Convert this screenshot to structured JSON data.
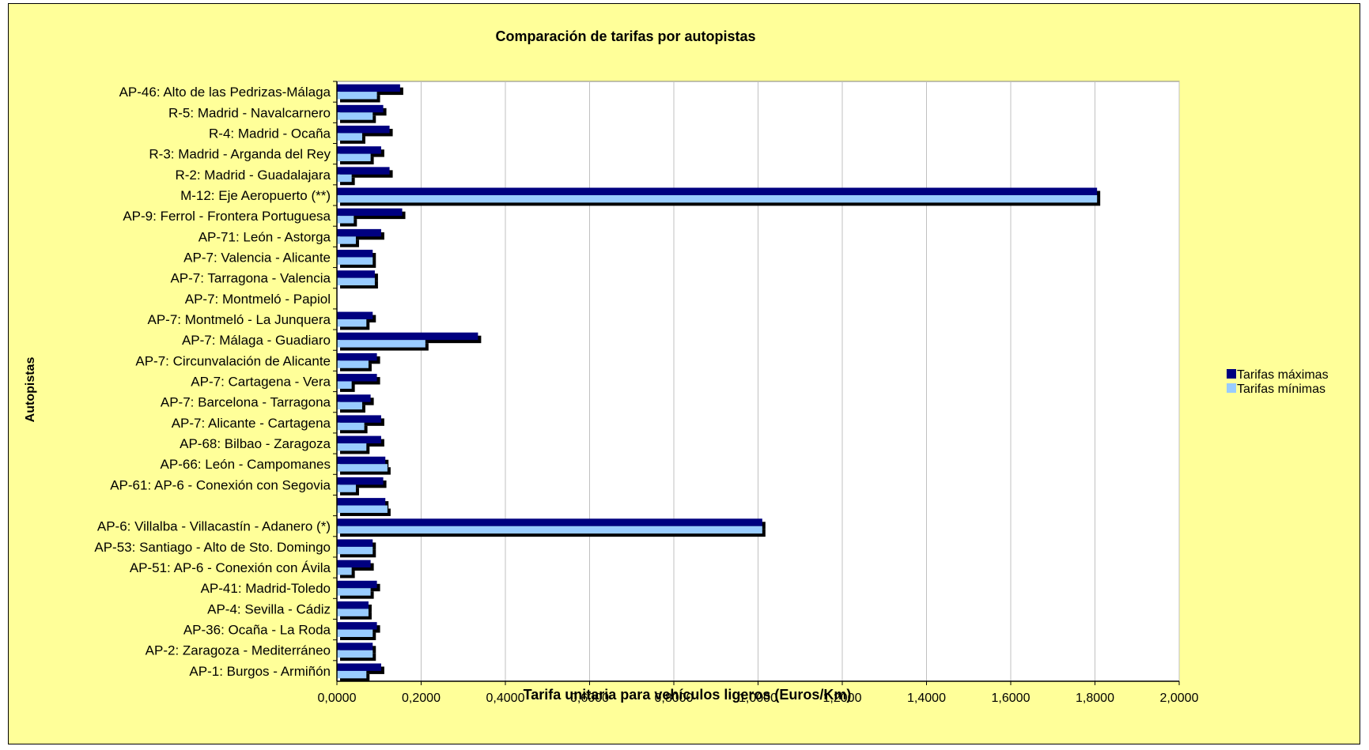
{
  "chart_data": {
    "type": "bar",
    "orientation": "horizontal",
    "title": "Comparación de tarifas por autopistas",
    "xlabel": "Tarifa unitaria para vehículos ligeros (Euros/Km)",
    "ylabel": "Autopistas",
    "xlim": [
      0,
      2
    ],
    "xticks": [
      "0,0000",
      "0,2000",
      "0,4000",
      "0,6000",
      "0,8000",
      "1,0000",
      "1,2000",
      "1,4000",
      "1,6000",
      "1,8000",
      "2,0000"
    ],
    "grid": "vertical",
    "legend_position": "right",
    "categories": [
      "AP-46: Alto de las Pedrizas-Málaga",
      "R-5: Madrid - Navalcarnero",
      "R-4: Madrid - Ocaña",
      "R-3: Madrid - Arganda del Rey",
      "R-2: Madrid - Guadalajara",
      "M-12: Eje Aeropuerto (**)",
      "AP-9: Ferrol - Frontera Portuguesa",
      "AP-71: León - Astorga",
      "AP-7: Valencia - Alicante",
      "AP-7: Tarragona - Valencia",
      "AP-7: Montmeló - Papiol",
      "AP-7: Montmeló - La Junquera",
      "AP-7: Málaga - Guadiaro",
      "AP-7: Circunvalación de Alicante",
      "AP-7: Cartagena - Vera",
      "AP-7: Barcelona - Tarragona",
      "AP-7: Alicante - Cartagena",
      "AP-68: Bilbao - Zaragoza",
      "AP-66: León - Campomanes",
      "AP-61: AP-6 - Conexión con  Segovia",
      "",
      "AP-6: Villalba - Villacastín - Adanero (*)",
      "AP-53: Santiago - Alto de Sto. Domingo",
      "AP-51: AP-6 - Conexión con Ávila",
      "AP-41: Madrid-Toledo",
      "AP-4: Sevilla - Cádiz",
      "AP-36: Ocaña - La Roda",
      "AP-2: Zaragoza - Mediterráneo",
      "AP-1: Burgos - Armiñón"
    ],
    "series": [
      {
        "name": "Tarifas máximas",
        "color": "#000080",
        "values": [
          0.15,
          0.11,
          0.125,
          0.105,
          0.125,
          1.805,
          0.155,
          0.105,
          0.085,
          0.09,
          0,
          0.085,
          0.335,
          0.095,
          0.095,
          0.08,
          0.105,
          0.105,
          0.115,
          0.11,
          0.115,
          1.01,
          0.085,
          0.08,
          0.095,
          0.075,
          0.095,
          0.085,
          0.105
        ]
      },
      {
        "name": "Tarifas mínimas",
        "color": "#99ccff",
        "values": [
          0.095,
          0.085,
          0.06,
          0.08,
          0.035,
          1.805,
          0.04,
          0.045,
          0.085,
          0.09,
          0,
          0.07,
          0.21,
          0.075,
          0.035,
          0.06,
          0.065,
          0.07,
          0.12,
          0.045,
          0.12,
          1.01,
          0.085,
          0.035,
          0.08,
          0.075,
          0.085,
          0.085,
          0.07
        ]
      }
    ]
  }
}
